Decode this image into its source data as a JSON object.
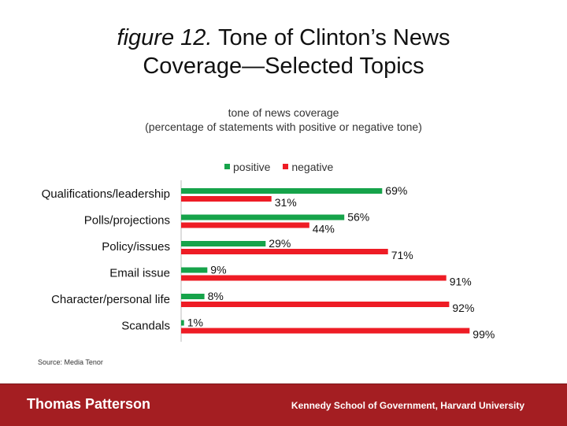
{
  "title": {
    "italic": "figure 12.",
    "line1_rest": " Tone of Clinton’s News",
    "line2": "Coverage—Selected Topics"
  },
  "subtitle": {
    "line1": "tone of news coverage",
    "line2": "(percentage of statements with positive or negative tone)"
  },
  "legend": {
    "positive": "positive",
    "negative": "negative"
  },
  "colors": {
    "positive": "#16a34a",
    "negative": "#ee1c25",
    "footer": "#a41e22"
  },
  "chart_data": {
    "type": "bar",
    "orientation": "horizontal",
    "categories": [
      "Qualifications/leadership",
      "Polls/projections",
      "Policy/issues",
      "Email issue",
      "Character/personal life",
      "Scandals"
    ],
    "series": [
      {
        "name": "positive",
        "values": [
          69,
          56,
          29,
          9,
          8,
          1
        ],
        "labels": [
          "69%",
          "56%",
          "29%",
          "9%",
          "8%",
          "1%"
        ]
      },
      {
        "name": "negative",
        "values": [
          31,
          44,
          71,
          91,
          92,
          99
        ],
        "labels": [
          "31%",
          "44%",
          "71%",
          "91%",
          "92%",
          "99%"
        ]
      }
    ],
    "title": "tone of news coverage",
    "xlim": [
      0,
      100
    ],
    "legend": "top"
  },
  "source": "Source: Media Tenor",
  "footer": {
    "left": "Thomas Patterson",
    "right": "Kennedy School of Government, Harvard University"
  }
}
